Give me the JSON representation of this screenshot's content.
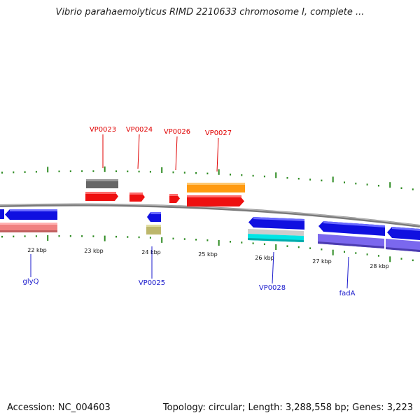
{
  "title": "Vibrio parahaemolyticus RIMD 2210633 chromosome I, complete ...",
  "footer": {
    "accession": "Accession: NC_004603",
    "stats": "Topology: circular; Length: 3,288,558 bp; Genes: 3,223"
  },
  "colors": {
    "backbone": "#808080",
    "tick": "#2e8b22",
    "top_label": "#e00000",
    "bottom_label": "#1a1acc",
    "blue_gene": "#1010e0",
    "red_gene": "#ee1010",
    "gray_gene": "#666666",
    "orange_gene": "#ff9a10",
    "pink_gene": "#f08080",
    "olive_gene": "#bdb76b",
    "cyan_gene": "#00e5e5",
    "lightgray_gene": "#cccccc",
    "purple_gene": "#7b68ee"
  },
  "scale_labels": [
    "22 kbp",
    "23 kbp",
    "24 kbp",
    "25 kbp",
    "26 kbp",
    "27 kbp",
    "28 kbp"
  ],
  "top_gene_labels": [
    "VP0023",
    "VP0024",
    "VP0026",
    "VP0027"
  ],
  "bottom_gene_labels": [
    "glyQ",
    "VP0025",
    "VP0028",
    "fadA"
  ]
}
